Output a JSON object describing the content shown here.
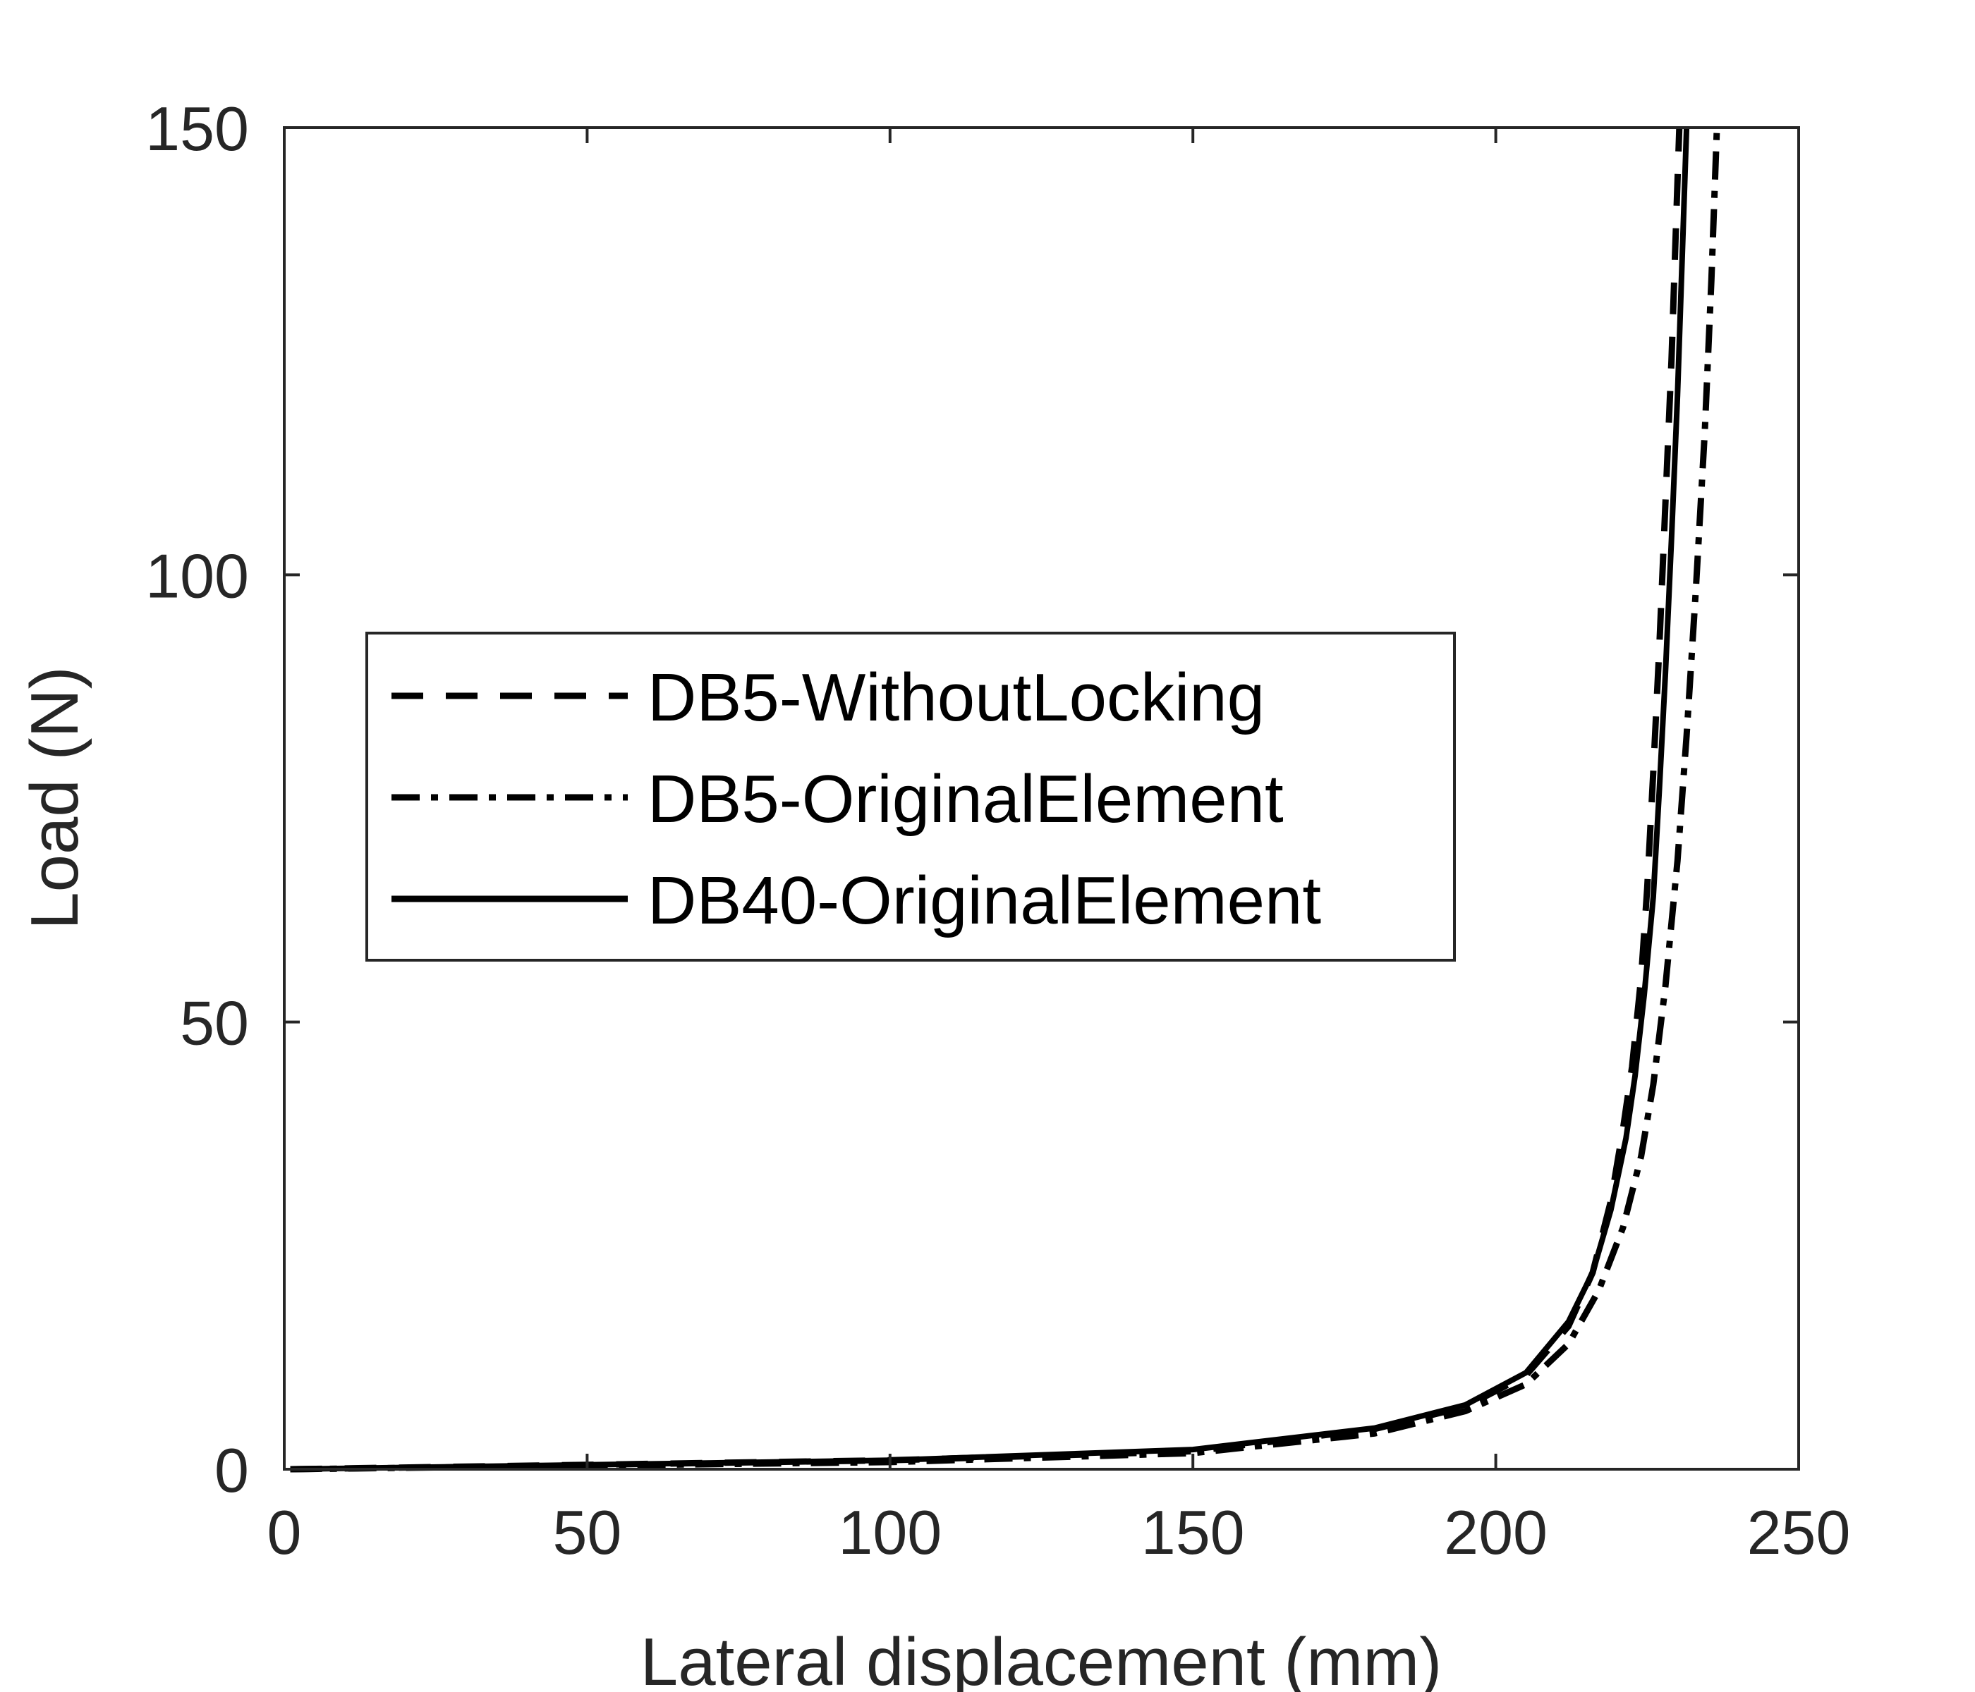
{
  "chart_data": {
    "type": "line",
    "title": "",
    "xlabel": "Lateral displacement (mm)",
    "ylabel": "Load (N)",
    "xlim": [
      0,
      250
    ],
    "ylim": [
      0,
      150
    ],
    "xticks": [
      0,
      50,
      100,
      150,
      200,
      250
    ],
    "yticks": [
      0,
      50,
      100,
      150
    ],
    "xtick_labels": [
      "0",
      "50",
      "100",
      "150",
      "200",
      "250"
    ],
    "ytick_labels": [
      "0",
      "50",
      "100",
      "150"
    ],
    "grid": false,
    "legend_position": "center-left",
    "series": [
      {
        "name": "DB5-WithoutLocking",
        "style": "dashed",
        "color": "#000000",
        "x": [
          1,
          50,
          100,
          150,
          180,
          195,
          205,
          212,
          216,
          219,
          221,
          222.5,
          224,
          225,
          226,
          227,
          228,
          229,
          229.8,
          230.3
        ],
        "y": [
          0,
          0.5,
          1,
          2,
          4.5,
          7,
          10.5,
          16,
          22,
          30,
          38,
          45,
          55,
          65,
          78,
          92,
          108,
          124,
          140,
          150
        ]
      },
      {
        "name": "DB5-OriginalElement",
        "style": "dashdot",
        "color": "#000000",
        "x": [
          1,
          50,
          100,
          150,
          180,
          195,
          205,
          212,
          217,
          221,
          224,
          226,
          228,
          230,
          231.5,
          233,
          234.5,
          235.6,
          236.5
        ],
        "y": [
          0,
          0.4,
          0.8,
          1.8,
          4,
          6.5,
          9.5,
          14,
          20,
          27,
          35,
          43,
          54,
          68,
          82,
          98,
          116,
          133,
          150
        ]
      },
      {
        "name": "DB40-OriginalElement",
        "style": "solid",
        "color": "#000000",
        "x": [
          1,
          50,
          100,
          150,
          180,
          195,
          205,
          212,
          216,
          219,
          221.5,
          223,
          224.5,
          226,
          227,
          228,
          229,
          230,
          230.8,
          231.5
        ],
        "y": [
          0,
          0.5,
          1,
          2.2,
          4.6,
          7.2,
          10.8,
          16.5,
          22,
          29,
          37,
          44,
          53,
          64,
          76,
          89,
          104,
          120,
          136,
          150
        ]
      }
    ]
  }
}
